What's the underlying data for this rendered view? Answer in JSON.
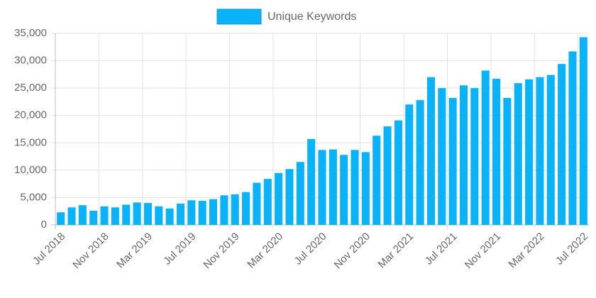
{
  "chart_data": {
    "type": "bar",
    "legend": "top",
    "grid": true,
    "categories": [
      "Jul 2018",
      null,
      null,
      null,
      "Nov 2018",
      null,
      null,
      null,
      "Mar 2019",
      null,
      null,
      null,
      "Jul 2019",
      null,
      null,
      null,
      "Nov 2019",
      null,
      null,
      null,
      "Mar 2020",
      null,
      null,
      null,
      "Jul 2020",
      null,
      null,
      null,
      "Nov 2020",
      null,
      null,
      null,
      "Mar 2021",
      null,
      null,
      null,
      "Jul 2021",
      null,
      null,
      null,
      "Nov 2021",
      null,
      null,
      null,
      "Mar 2022",
      null,
      null,
      null,
      "Jul 2022"
    ],
    "series": [
      {
        "name": "Unique Keywords",
        "color": "#0ab2f8",
        "values": [
          2300,
          3200,
          3600,
          2600,
          3400,
          3200,
          3700,
          4100,
          4000,
          3400,
          3000,
          3900,
          4500,
          4400,
          4700,
          5400,
          5600,
          6000,
          7700,
          8400,
          9500,
          10200,
          11500,
          15700,
          13700,
          13800,
          12800,
          13700,
          13300,
          16300,
          18000,
          19100,
          22000,
          22800,
          27000,
          25000,
          23200,
          25500,
          25000,
          28200,
          26700,
          23200,
          25900,
          26600,
          27000,
          27400,
          29400,
          31700,
          34300
        ]
      }
    ],
    "ylim": [
      0,
      35000
    ],
    "yticks": [
      0,
      {
        "value": 5000,
        "label": "5,000"
      },
      {
        "value": 10000,
        "label": "10,000"
      },
      {
        "value": 15000,
        "label": "15,000"
      },
      {
        "value": 20000,
        "label": "20,000"
      },
      {
        "value": 25000,
        "label": "25,000"
      },
      {
        "value": 30000,
        "label": "30,000"
      },
      {
        "value": 35000,
        "label": "35,000"
      }
    ]
  }
}
